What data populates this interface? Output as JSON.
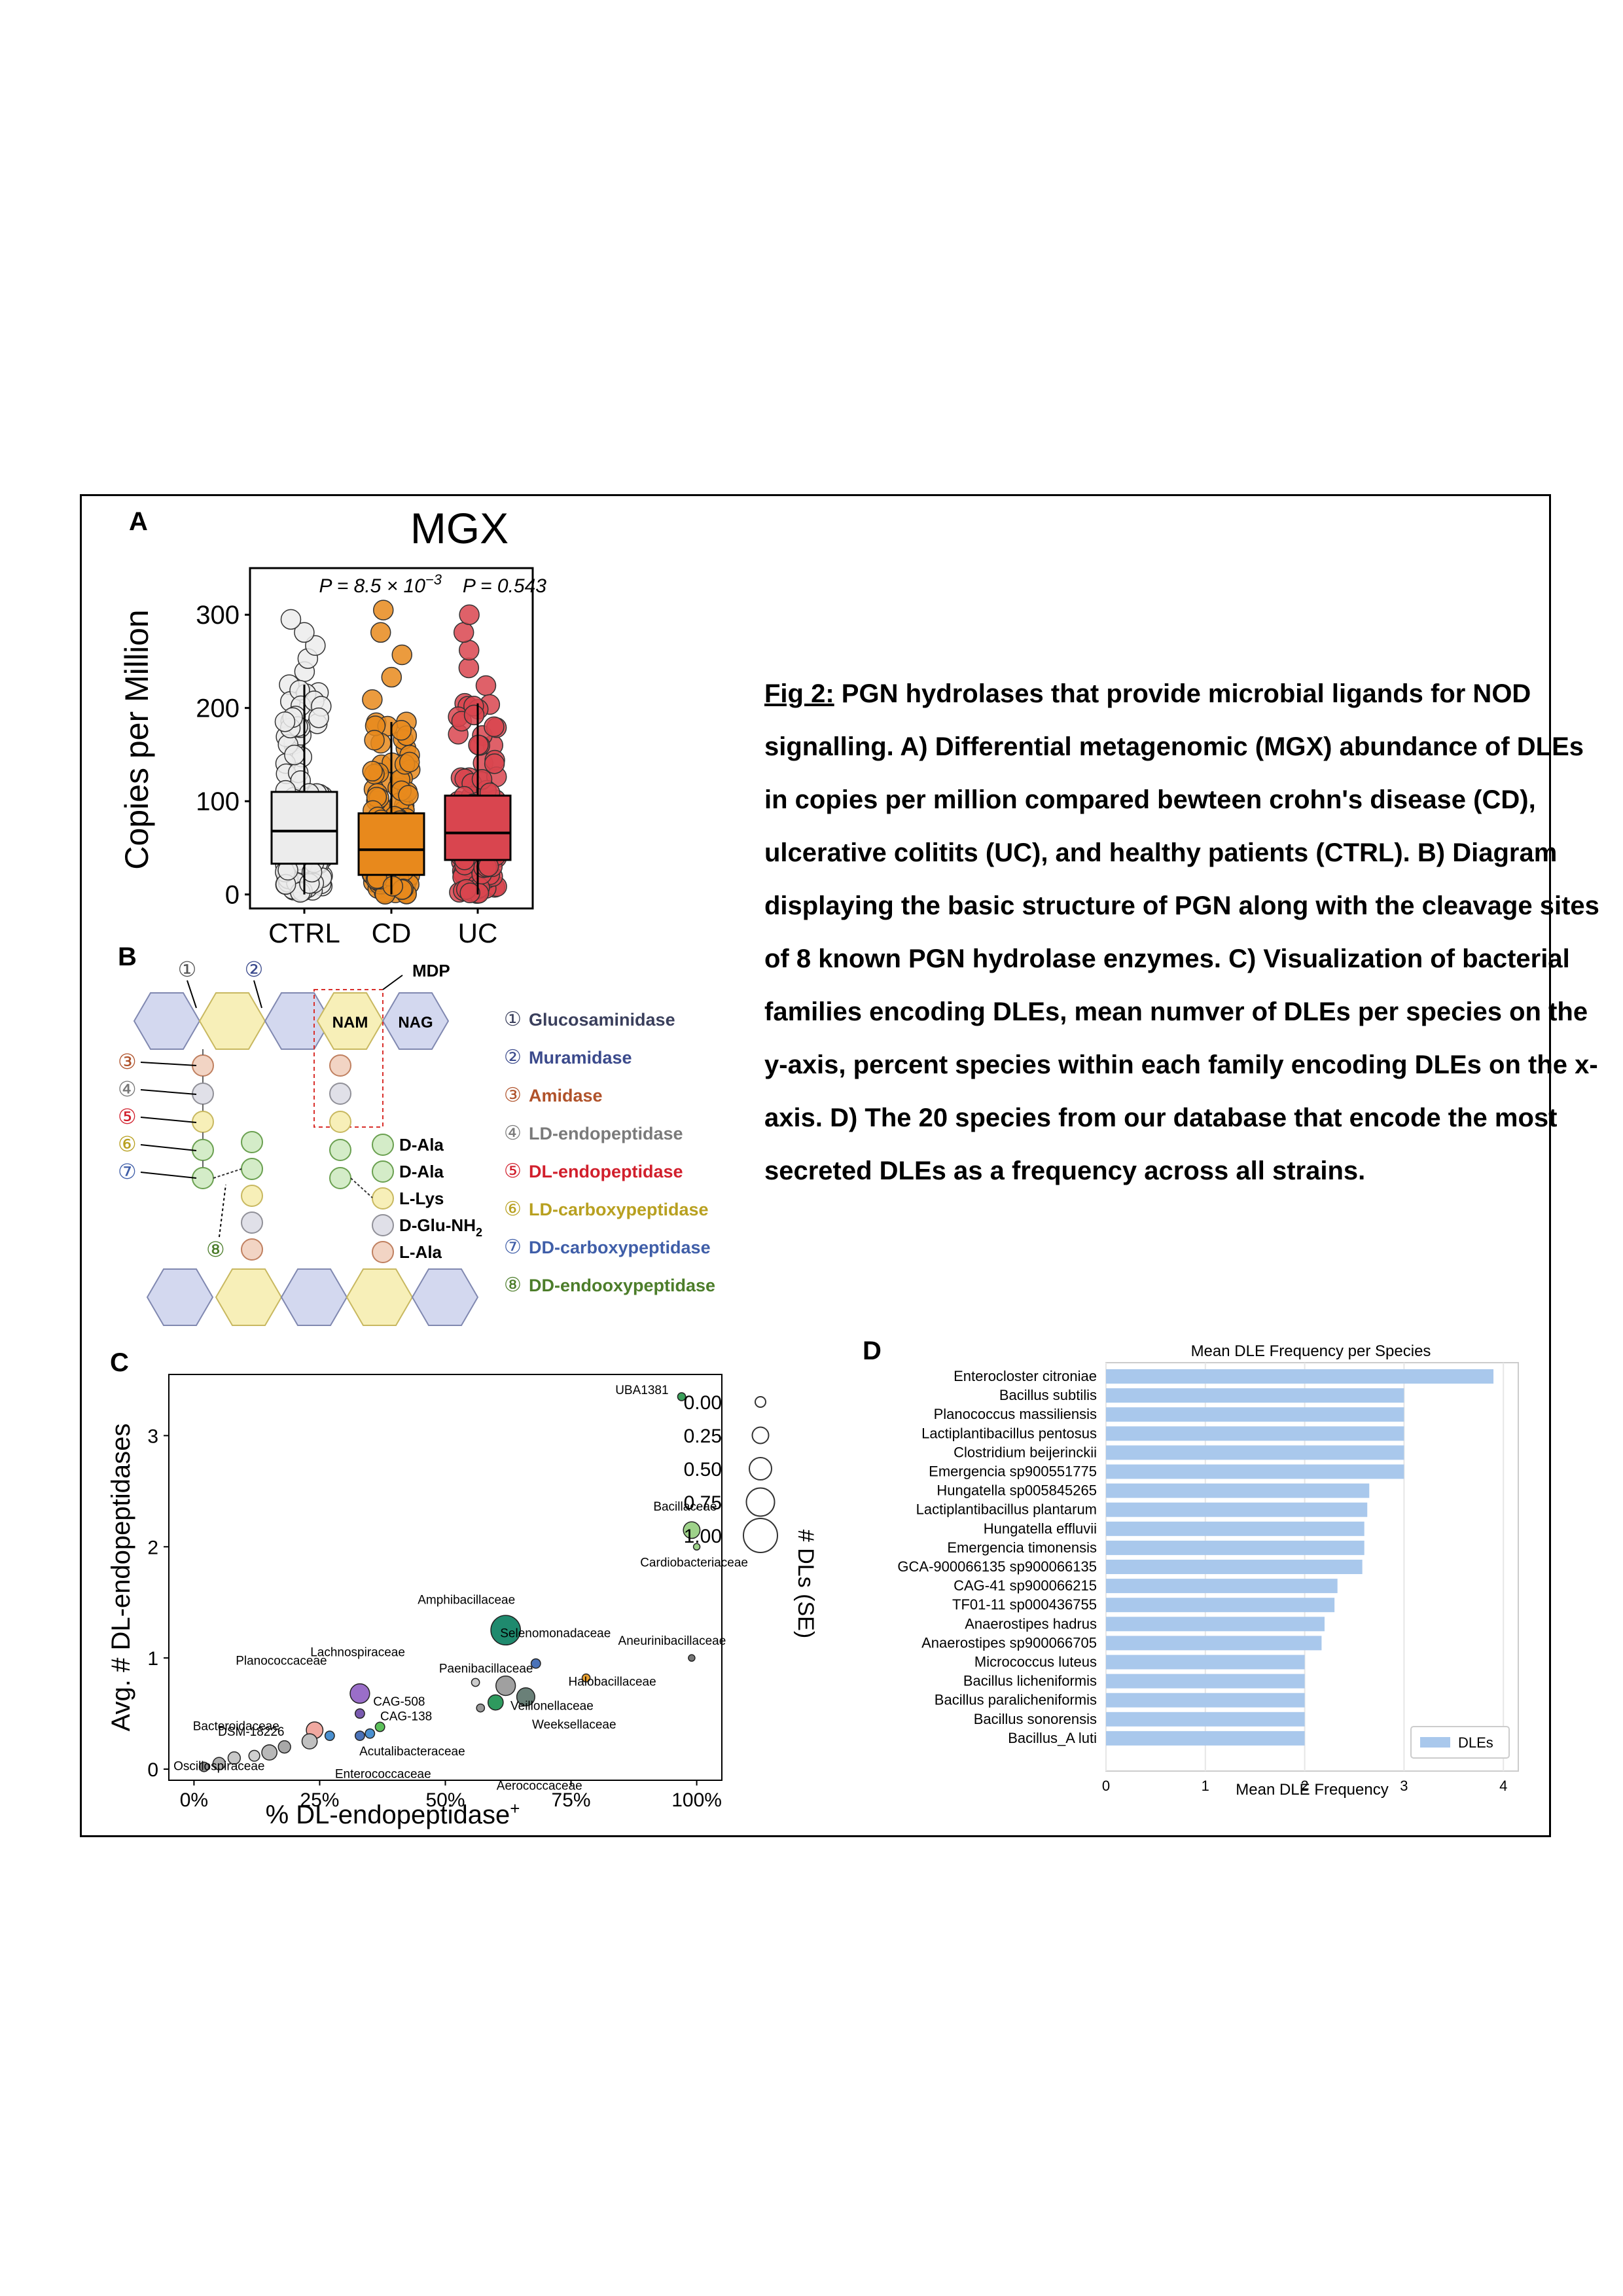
{
  "caption": {
    "label": "Fig 2:",
    "lines": [
      " PGN hydrolases that provide microbial ligands for NOD",
      "signalling.  A) Differential metagenomic (MGX) abundance of DLEs",
      "in copies per million compared bewteen crohn's disease (CD),",
      "ulcerative colitits (UC), and healthy patients (CTRL). B) Diagram",
      "displaying the basic structure of PGN along with the cleavage sites",
      "of 8 known PGN hydrolase enzymes. C) Visualization of bacterial",
      "families encoding DLEs, mean numver of DLEs per species on the",
      "y-axis, percent species within each family encoding DLEs on the x-",
      "axis. D) The 20 species from our database that encode the most",
      "secreted DLEs as a frequency across all strains."
    ]
  },
  "panels": {
    "a": "A",
    "b": "B",
    "c": "C",
    "d": "D"
  },
  "panel_a": {
    "title": "MGX",
    "ylabel": "Copies per Million",
    "yticks": [
      "0",
      "100",
      "200",
      "300"
    ],
    "pvalue_cd": "P = 8.5 × 10",
    "pvalue_cd_exp": "−3",
    "pvalue_uc": "P = 0.543"
  },
  "panel_b": {
    "mdp_label": "MDP",
    "nam_label": "NAM",
    "nag_label": "NAG",
    "site_numbers": [
      "①",
      "②",
      "③",
      "④",
      "⑤",
      "⑥",
      "⑦",
      "⑧"
    ],
    "amino_acids": [
      "D-Ala",
      "D-Ala",
      "L-Lys",
      "D-Glu-NH",
      "L-Ala"
    ],
    "nh2_sub": "2",
    "enzymes": [
      {
        "num": "①",
        "name": "Glucosaminidase",
        "color": "#3a3f5c"
      },
      {
        "num": "②",
        "name": "Muramidase",
        "color": "#3b4a8c"
      },
      {
        "num": "③",
        "name": "Amidase",
        "color": "#b0522a"
      },
      {
        "num": "④",
        "name": "LD-endopeptidase",
        "color": "#7a7a7a"
      },
      {
        "num": "⑤",
        "name": "DL-endopeptidase",
        "color": "#d11f2c"
      },
      {
        "num": "⑥",
        "name": "LD-carboxypeptidase",
        "color": "#b8a020"
      },
      {
        "num": "⑦",
        "name": "DD-carboxypeptidase",
        "color": "#3f5ea8"
      },
      {
        "num": "⑧",
        "name": "DD-endooxypeptidase",
        "color": "#4c7d2a"
      }
    ]
  },
  "panel_c": {
    "xlabel": "% DL-endopeptidase",
    "xlabel_sup": "+",
    "ylabel": "Avg. # DL-endopeptidases",
    "xticks": [
      "0%",
      "25%",
      "50%",
      "75%",
      "100%"
    ],
    "yticks": [
      "0",
      "1",
      "2",
      "3"
    ],
    "size_legend_title": "# DLs (SE)",
    "size_legend": [
      "0.00",
      "0.25",
      "0.50",
      "0.75",
      "1.00"
    ]
  },
  "panel_d_text": {
    "title": "Mean DLE Frequency per Species",
    "xlabel": "Mean DLE Frequency",
    "legend": "DLEs"
  },
  "chart_data": [
    {
      "type": "box",
      "title": "MGX",
      "ylabel": "Copies per Million",
      "ylim": [
        -15,
        350
      ],
      "categories": [
        "CTRL",
        "CD",
        "UC"
      ],
      "boxes": [
        {
          "name": "CTRL",
          "q1": 33,
          "median": 68,
          "q3": 110,
          "whisker_low": 0,
          "whisker_high": 225,
          "max": 295,
          "color": "#ececec"
        },
        {
          "name": "CD",
          "q1": 21,
          "median": 48,
          "q3": 87,
          "whisker_low": 0,
          "whisker_high": 185,
          "max": 305,
          "color": "#e8891c"
        },
        {
          "name": "UC",
          "q1": 37,
          "median": 66,
          "q3": 106,
          "whisker_low": 0,
          "whisker_high": 205,
          "max": 300,
          "color": "#d9454f"
        }
      ]
    },
    {
      "type": "scatter",
      "xlabel": "% DL-endopeptidase+",
      "ylabel": "Avg. # DL-endopeptidases",
      "xlim": [
        -0.05,
        1.05
      ],
      "ylim": [
        -0.1,
        3.55
      ],
      "points": [
        {
          "label": "UBA1381",
          "x": 0.97,
          "y": 3.35,
          "se": 0.05,
          "color": "#3aa05a"
        },
        {
          "label": "Bacillaceae",
          "x": 0.99,
          "y": 2.15,
          "se": 0.35,
          "color": "#9ed28a"
        },
        {
          "label": "Cardiobacteriaceae",
          "x": 1.0,
          "y": 2.0,
          "se": 0.0,
          "color": "#9ed28a"
        },
        {
          "label": "Amphibacillaceae",
          "x": 0.62,
          "y": 1.25,
          "se": 0.8,
          "color": "#1f8a6e"
        },
        {
          "label": "Aneurinibacillaceae",
          "x": 0.99,
          "y": 1.0,
          "se": 0.0,
          "color": "#777777"
        },
        {
          "label": "Selenomonadaceae",
          "x": 0.68,
          "y": 0.95,
          "se": 0.1,
          "color": "#4a72b8"
        },
        {
          "label": "Halobacillaceae",
          "x": 0.78,
          "y": 0.82,
          "se": 0.05,
          "color": "#e8a030"
        },
        {
          "label": "Paenibacillaceae",
          "x": 0.62,
          "y": 0.75,
          "se": 0.45,
          "color": "#a0a0a0"
        },
        {
          "label": "Veillonellaceae",
          "x": 0.66,
          "y": 0.65,
          "se": 0.4,
          "color": "#6a8078"
        },
        {
          "label": "Lachnospiraceae",
          "x": 0.56,
          "y": 0.78,
          "se": 0.05,
          "color": "#cccccc"
        },
        {
          "label": "Planococcaceae",
          "x": 0.33,
          "y": 0.68,
          "se": 0.45,
          "color": "#9a6ec8"
        },
        {
          "label": "Weeksellaceae",
          "x": 0.6,
          "y": 0.6,
          "se": 0.3,
          "color": "#2e9a5e"
        },
        {
          "label": "CAG-508",
          "x": 0.33,
          "y": 0.5,
          "se": 0.1,
          "color": "#7a5ab0"
        },
        {
          "label": "CAG-138",
          "x": 0.37,
          "y": 0.38,
          "se": 0.1,
          "color": "#5cc05a"
        },
        {
          "label": "Bacteroidaceae",
          "x": 0.24,
          "y": 0.35,
          "se": 0.35,
          "color": "#f0a8a0"
        },
        {
          "label": "Acutalibacteraceae",
          "x": 0.33,
          "y": 0.3,
          "se": 0.1,
          "color": "#4a72b8"
        },
        {
          "label": "Enterococcaceae",
          "x": 0.35,
          "y": 0.32,
          "se": 0.1,
          "color": "#4a90d0"
        },
        {
          "label": "DSM-18226",
          "x": 0.27,
          "y": 0.3,
          "se": 0.1,
          "color": "#4a90d0"
        },
        {
          "label": "Aerococcaceae",
          "x": 0.57,
          "y": 0.55,
          "se": 0.05,
          "color": "#999999"
        },
        {
          "label": "Oscillospiraceae",
          "x": 0.05,
          "y": 0.05,
          "se": 0.2,
          "color": "#b0b0b0"
        },
        {
          "label": "",
          "x": 0.15,
          "y": 0.15,
          "se": 0.3,
          "color": "#b8b8b8"
        },
        {
          "label": "",
          "x": 0.23,
          "y": 0.25,
          "se": 0.3,
          "color": "#c0c0c0"
        },
        {
          "label": "",
          "x": 0.18,
          "y": 0.2,
          "se": 0.2,
          "color": "#a8a8a8"
        },
        {
          "label": "",
          "x": 0.08,
          "y": 0.1,
          "se": 0.2,
          "color": "#c8c8c8"
        },
        {
          "label": "",
          "x": 0.02,
          "y": 0.02,
          "se": 0.1,
          "color": "#909090"
        },
        {
          "label": "",
          "x": 0.12,
          "y": 0.12,
          "se": 0.15,
          "color": "#d0d0d0"
        }
      ]
    },
    {
      "type": "bar",
      "orientation": "horizontal",
      "title": "Mean DLE Frequency per Species",
      "xlabel": "Mean DLE Frequency",
      "xlim": [
        0,
        4.15
      ],
      "xticks": [
        0,
        1,
        2,
        3,
        4
      ],
      "categories": [
        "Enterocloster citroniae",
        "Bacillus subtilis",
        "Planococcus massiliensis",
        "Lactiplantibacillus pentosus",
        "Clostridium beijerinckii",
        "Emergencia sp900551775",
        "Hungatella sp005845265",
        "Lactiplantibacillus plantarum",
        "Hungatella effluvii",
        "Emergencia timonensis",
        "GCA-900066135 sp900066135",
        "CAG-41 sp900066215",
        "TF01-11 sp000436755",
        "Anaerostipes hadrus",
        "Anaerostipes sp900066705",
        "Micrococcus luteus",
        "Bacillus licheniformis",
        "Bacillus paralicheniformis",
        "Bacillus sonorensis",
        "Bacillus_A luti"
      ],
      "series": [
        {
          "name": "DLEs",
          "color": "#a9c8ec",
          "values": [
            3.9,
            3.0,
            3.0,
            3.0,
            3.0,
            3.0,
            2.65,
            2.63,
            2.6,
            2.6,
            2.58,
            2.33,
            2.3,
            2.2,
            2.17,
            2.0,
            2.0,
            2.0,
            2.0,
            2.0
          ]
        }
      ]
    }
  ]
}
